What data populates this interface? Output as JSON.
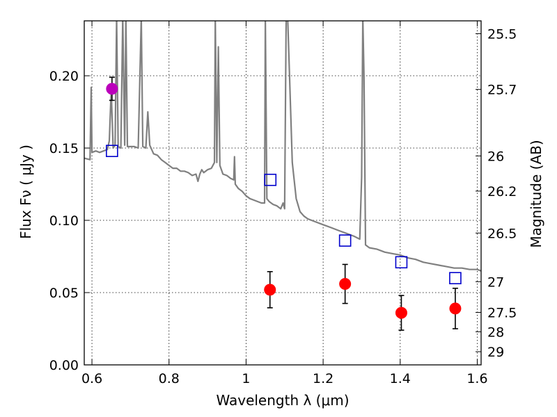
{
  "chart_data": {
    "type": "scatter",
    "xlabel": "Wavelength  λ (μm)",
    "ylabel": "Flux  Fν  ( μJy )",
    "ylabel2": "Magnitude (AB)",
    "xlim": [
      0.58,
      1.61
    ],
    "ylim": [
      0.0,
      0.238
    ],
    "grid": true,
    "x_ticks": [
      {
        "value": 0.6,
        "label": "0.6"
      },
      {
        "value": 0.8,
        "label": "0.8"
      },
      {
        "value": 1.0,
        "label": "1"
      },
      {
        "value": 1.2,
        "label": "1.2"
      },
      {
        "value": 1.4,
        "label": "1.4"
      },
      {
        "value": 1.6,
        "label": "1.6"
      }
    ],
    "y_ticks": [
      {
        "value": 0.0,
        "label": "0.00"
      },
      {
        "value": 0.05,
        "label": "0.05"
      },
      {
        "value": 0.1,
        "label": "0.10"
      },
      {
        "value": 0.15,
        "label": "0.15"
      },
      {
        "value": 0.2,
        "label": "0.20"
      }
    ],
    "mag_ticks": [
      {
        "label": "25.5"
      },
      {
        "label": "25.7"
      },
      {
        "label": "26"
      },
      {
        "label": "26.2"
      },
      {
        "label": "26.5"
      },
      {
        "label": "27"
      },
      {
        "label": "27.5"
      },
      {
        "label": "28"
      },
      {
        "label": "29"
      }
    ],
    "series": [
      {
        "name": "model-spectrum",
        "kind": "line",
        "color": "#808080",
        "points": [
          [
            0.58,
            0.143
          ],
          [
            0.595,
            0.142
          ],
          [
            0.598,
            0.192
          ],
          [
            0.6,
            0.147
          ],
          [
            0.61,
            0.148
          ],
          [
            0.62,
            0.147
          ],
          [
            0.63,
            0.148
          ],
          [
            0.64,
            0.149
          ],
          [
            0.645,
            0.155
          ],
          [
            0.65,
            0.19
          ],
          [
            0.655,
            0.15
          ],
          [
            0.66,
            0.152
          ],
          [
            0.664,
            0.24
          ],
          [
            0.668,
            0.151
          ],
          [
            0.675,
            0.15
          ],
          [
            0.68,
            0.24
          ],
          [
            0.685,
            0.152
          ],
          [
            0.688,
            0.24
          ],
          [
            0.692,
            0.151
          ],
          [
            0.7,
            0.151
          ],
          [
            0.71,
            0.151
          ],
          [
            0.72,
            0.15
          ],
          [
            0.728,
            0.24
          ],
          [
            0.732,
            0.151
          ],
          [
            0.74,
            0.15
          ],
          [
            0.745,
            0.175
          ],
          [
            0.75,
            0.152
          ],
          [
            0.76,
            0.146
          ],
          [
            0.77,
            0.145
          ],
          [
            0.78,
            0.142
          ],
          [
            0.79,
            0.14
          ],
          [
            0.8,
            0.138
          ],
          [
            0.81,
            0.136
          ],
          [
            0.82,
            0.136
          ],
          [
            0.83,
            0.134
          ],
          [
            0.84,
            0.134
          ],
          [
            0.85,
            0.133
          ],
          [
            0.86,
            0.131
          ],
          [
            0.87,
            0.132
          ],
          [
            0.875,
            0.127
          ],
          [
            0.88,
            0.132
          ],
          [
            0.885,
            0.135
          ],
          [
            0.89,
            0.133
          ],
          [
            0.9,
            0.135
          ],
          [
            0.91,
            0.136
          ],
          [
            0.918,
            0.14
          ],
          [
            0.92,
            0.24
          ],
          [
            0.924,
            0.14
          ],
          [
            0.928,
            0.22
          ],
          [
            0.932,
            0.138
          ],
          [
            0.94,
            0.132
          ],
          [
            0.95,
            0.131
          ],
          [
            0.96,
            0.129
          ],
          [
            0.968,
            0.128
          ],
          [
            0.97,
            0.144
          ],
          [
            0.972,
            0.125
          ],
          [
            0.98,
            0.122
          ],
          [
            0.99,
            0.12
          ],
          [
            1.0,
            0.117
          ],
          [
            1.01,
            0.115
          ],
          [
            1.02,
            0.114
          ],
          [
            1.03,
            0.113
          ],
          [
            1.04,
            0.112
          ],
          [
            1.048,
            0.112
          ],
          [
            1.05,
            0.24
          ],
          [
            1.054,
            0.115
          ],
          [
            1.06,
            0.113
          ],
          [
            1.07,
            0.111
          ],
          [
            1.08,
            0.11
          ],
          [
            1.09,
            0.108
          ],
          [
            1.096,
            0.112
          ],
          [
            1.1,
            0.108
          ],
          [
            1.104,
            0.24
          ],
          [
            1.108,
            0.24
          ],
          [
            1.12,
            0.14
          ],
          [
            1.13,
            0.115
          ],
          [
            1.14,
            0.106
          ],
          [
            1.15,
            0.103
          ],
          [
            1.16,
            0.101
          ],
          [
            1.18,
            0.099
          ],
          [
            1.2,
            0.097
          ],
          [
            1.22,
            0.095
          ],
          [
            1.24,
            0.093
          ],
          [
            1.26,
            0.091
          ],
          [
            1.28,
            0.089
          ],
          [
            1.295,
            0.087
          ],
          [
            1.3,
            0.13
          ],
          [
            1.303,
            0.24
          ],
          [
            1.306,
            0.2
          ],
          [
            1.31,
            0.083
          ],
          [
            1.32,
            0.081
          ],
          [
            1.34,
            0.08
          ],
          [
            1.36,
            0.078
          ],
          [
            1.38,
            0.077
          ],
          [
            1.4,
            0.076
          ],
          [
            1.42,
            0.074
          ],
          [
            1.44,
            0.073
          ],
          [
            1.46,
            0.071
          ],
          [
            1.48,
            0.07
          ],
          [
            1.5,
            0.069
          ],
          [
            1.52,
            0.068
          ],
          [
            1.54,
            0.067
          ],
          [
            1.56,
            0.067
          ],
          [
            1.58,
            0.066
          ],
          [
            1.6,
            0.066
          ],
          [
            1.61,
            0.065
          ]
        ]
      },
      {
        "name": "model-photometry",
        "kind": "square",
        "color": "#0000cc",
        "points": [
          [
            0.652,
            0.148
          ],
          [
            1.063,
            0.128
          ],
          [
            1.257,
            0.086
          ],
          [
            1.403,
            0.071
          ],
          [
            1.543,
            0.06
          ]
        ]
      },
      {
        "name": "observed-red",
        "kind": "circle-errorbar",
        "color": "#ff0000",
        "points": [
          {
            "x": 1.062,
            "y": 0.052,
            "err": 0.0125
          },
          {
            "x": 1.257,
            "y": 0.056,
            "err": 0.0135
          },
          {
            "x": 1.403,
            "y": 0.036,
            "err": 0.012
          },
          {
            "x": 1.543,
            "y": 0.039,
            "err": 0.014
          }
        ]
      },
      {
        "name": "observed-magenta",
        "kind": "circle-errorbar",
        "color": "#bb00bb",
        "points": [
          {
            "x": 0.652,
            "y": 0.191,
            "err": 0.008
          }
        ]
      }
    ]
  }
}
